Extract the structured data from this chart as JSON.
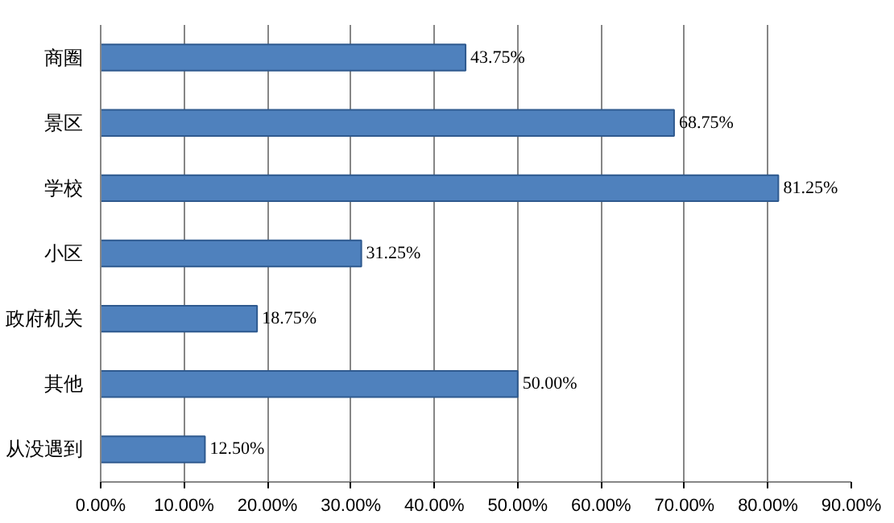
{
  "chart_data": {
    "type": "bar",
    "orientation": "horizontal",
    "categories": [
      "商圈",
      "景区",
      "学校",
      "小区",
      "政府机关",
      "其他",
      "从没遇到"
    ],
    "values": [
      43.75,
      68.75,
      81.25,
      31.25,
      18.75,
      50.0,
      12.5
    ],
    "value_labels": [
      "43.75%",
      "68.75%",
      "81.25%",
      "31.25%",
      "18.75%",
      "50.00%",
      "12.50%"
    ],
    "color": "#4f81bd",
    "xlim": [
      0,
      90
    ],
    "xticks": [
      {
        "value": 0,
        "label": "0.00%"
      },
      {
        "value": 10,
        "label": "10.00%"
      },
      {
        "value": 20,
        "label": "20.00%"
      },
      {
        "value": 30,
        "label": "30.00%"
      },
      {
        "value": 40,
        "label": "40.00%"
      },
      {
        "value": 50,
        "label": "50.00%"
      },
      {
        "value": 60,
        "label": "60.00%"
      },
      {
        "value": 70,
        "label": "70.00%"
      },
      {
        "value": 80,
        "label": "80.00%"
      },
      {
        "value": 90,
        "label": "90.00%"
      }
    ],
    "grid": "x"
  }
}
